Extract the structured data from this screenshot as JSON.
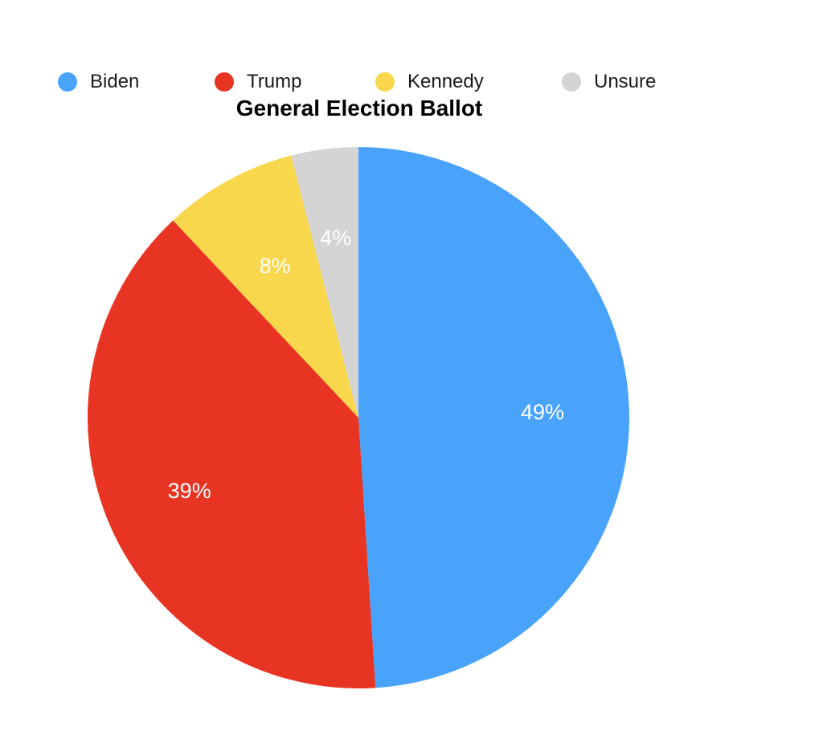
{
  "chart_data": {
    "type": "pie",
    "title": "General Election Ballot",
    "legend_position": "top",
    "slices": [
      {
        "name": "Biden",
        "value": 49,
        "label": "49%",
        "color": "#4aa3fb"
      },
      {
        "name": "Trump",
        "value": 39,
        "label": "39%",
        "color": "#e83423"
      },
      {
        "name": "Kennedy",
        "value": 8,
        "label": "8%",
        "color": "#f9d74c"
      },
      {
        "name": "Unsure",
        "value": 4,
        "label": "4%",
        "color": "#d4d4d4"
      }
    ]
  }
}
